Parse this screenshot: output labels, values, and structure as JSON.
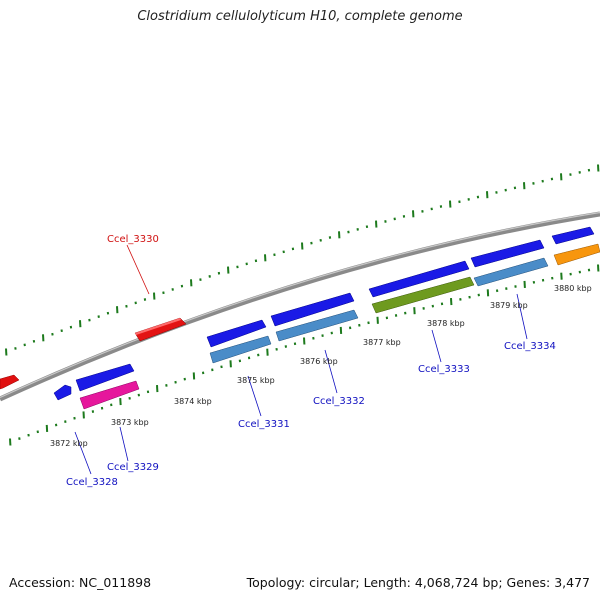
{
  "title": "Clostridium cellulolyticum H10, complete genome",
  "footer": {
    "accession": "Accession: NC_011898",
    "summary": "Topology: circular; Length: 4,068,724 bp; Genes: 3,477"
  },
  "colors": {
    "backbone": "#8a8a8a",
    "ticks": "#1d7a1d",
    "label_blue": "#1010c0",
    "label_red": "#d01010"
  },
  "kbp_labels": [
    "3872 kbp",
    "3873 kbp",
    "3874 kbp",
    "3875 kbp",
    "3876 kbp",
    "3877 kbp",
    "3878 kbp",
    "3879 kbp",
    "3880 kbp"
  ],
  "gene_labels": [
    {
      "id": "Ccel_3328",
      "color": "#1010c0"
    },
    {
      "id": "Ccel_3329",
      "color": "#1010c0"
    },
    {
      "id": "Ccel_3330",
      "color": "#d01010"
    },
    {
      "id": "Ccel_3331",
      "color": "#1010c0"
    },
    {
      "id": "Ccel_3332",
      "color": "#1010c0"
    },
    {
      "id": "Ccel_3333",
      "color": "#1010c0"
    },
    {
      "id": "Ccel_3334",
      "color": "#1010c0"
    }
  ]
}
